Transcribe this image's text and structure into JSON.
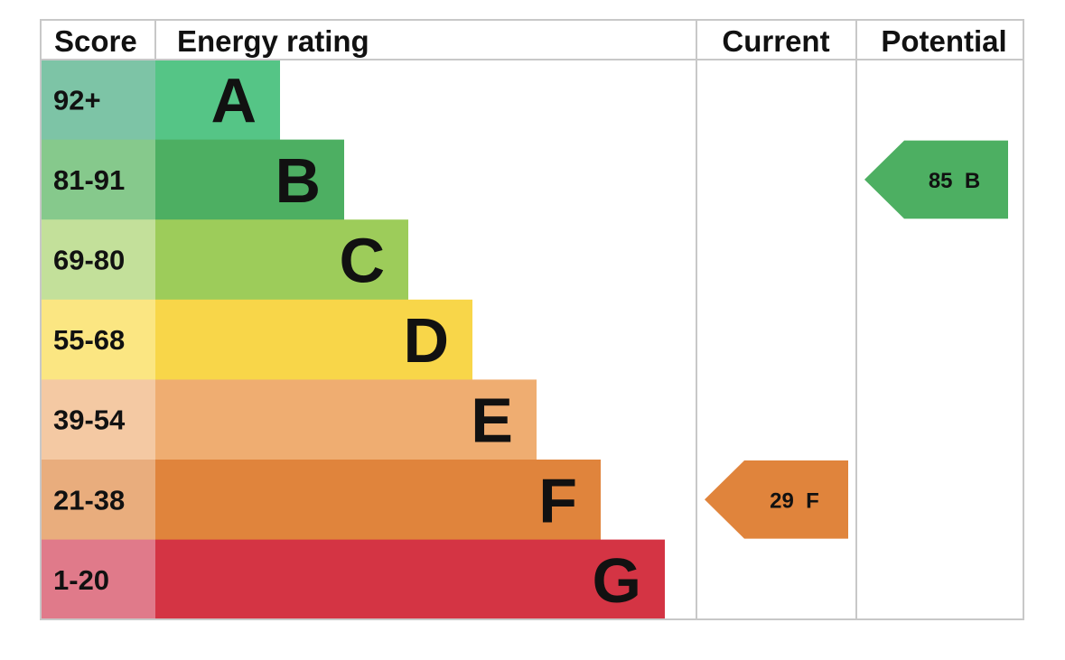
{
  "chart_data": {
    "type": "bar",
    "headers": {
      "score": "Score",
      "rating": "Energy rating",
      "current": "Current",
      "potential": "Potential"
    },
    "bands": [
      {
        "letter": "A",
        "range": "92+",
        "color": "#55c586",
        "score_color": "#7dc4a6"
      },
      {
        "letter": "B",
        "range": "81-91",
        "color": "#4daf62",
        "score_color": "#86c98c"
      },
      {
        "letter": "C",
        "range": "69-80",
        "color": "#9dcc5a",
        "score_color": "#c3e09a"
      },
      {
        "letter": "D",
        "range": "55-68",
        "color": "#f8d649",
        "score_color": "#fbe682"
      },
      {
        "letter": "E",
        "range": "39-54",
        "color": "#efad71",
        "score_color": "#f4c9a3"
      },
      {
        "letter": "F",
        "range": "21-38",
        "color": "#e0843c",
        "score_color": "#e9ad7d"
      },
      {
        "letter": "G",
        "range": "1-20",
        "color": "#d43444",
        "score_color": "#e07a8a"
      }
    ],
    "current": {
      "value": 29,
      "letter": "F",
      "label": "29 F",
      "color": "#e0843c"
    },
    "potential": {
      "value": 85,
      "letter": "B",
      "label": "85 B",
      "color": "#4daf62"
    }
  }
}
